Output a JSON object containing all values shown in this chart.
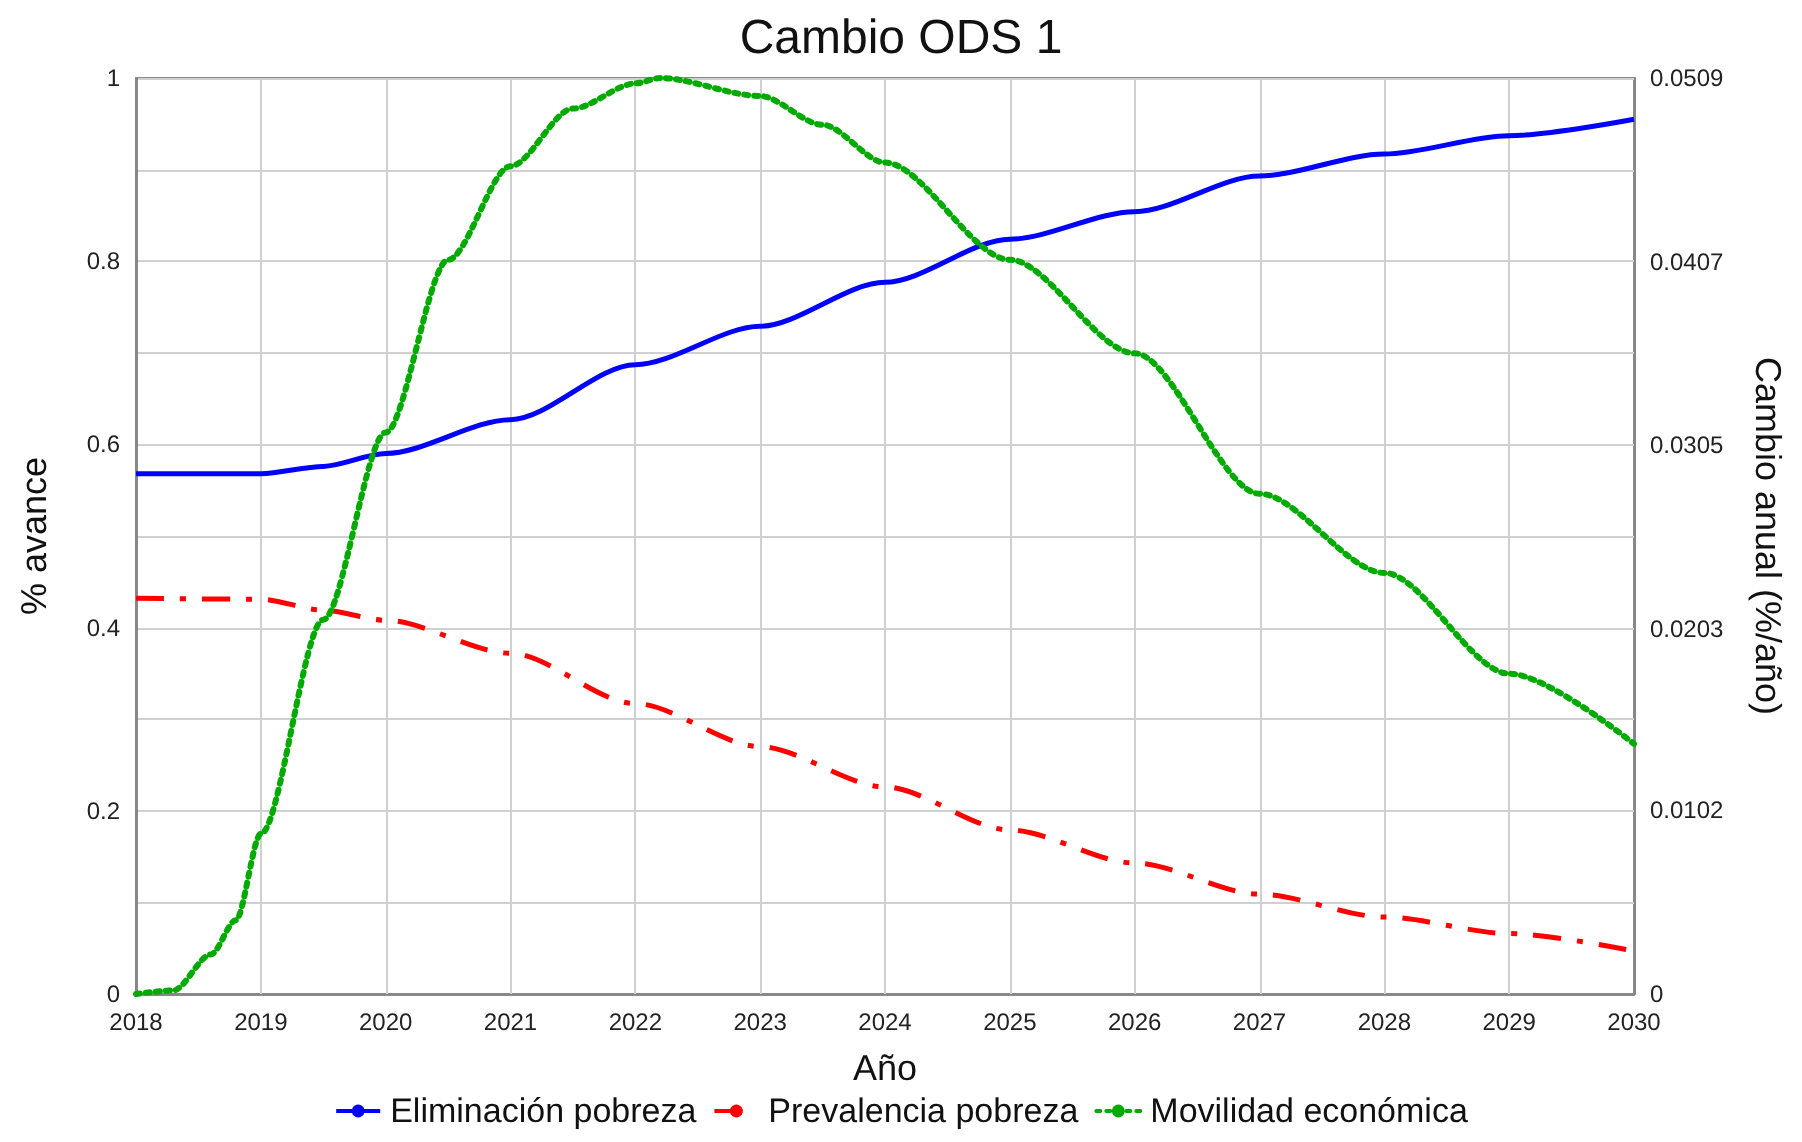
{
  "chart_data": {
    "type": "line",
    "title": "Cambio ODS 1",
    "xlabel": "Año",
    "ylabel": "% avance",
    "y2label": "Cambio anual (%/año)",
    "x": [
      2018,
      2019,
      2019.5,
      2020,
      2021,
      2022,
      2023,
      2024,
      2025,
      2026,
      2027,
      2028,
      2029,
      2030
    ],
    "series": [
      {
        "name": "Eliminación pobreza",
        "color": "#0000ff",
        "line_style": "solid",
        "values": [
          0.568,
          0.568,
          0.576,
          0.59,
          0.627,
          0.687,
          0.729,
          0.777,
          0.824,
          0.854,
          0.893,
          0.917,
          0.937,
          0.955
        ]
      },
      {
        "name": "Prevalencia pobreza",
        "color": "#ff0000",
        "line_style": "dashdot",
        "values": [
          0.432,
          0.431,
          0.419,
          0.408,
          0.372,
          0.317,
          0.27,
          0.226,
          0.179,
          0.143,
          0.109,
          0.084,
          0.066,
          0.047
        ]
      },
      {
        "name": "Movilidad económica",
        "color": "#00aa00",
        "line_style": "dotted",
        "axis": "y2",
        "x": [
          2018,
          2018.3,
          2018.6,
          2018.8,
          2019,
          2019.5,
          2020,
          2020.5,
          2021,
          2021.5,
          2022,
          2022.2,
          2023,
          2023.5,
          2024,
          2025,
          2026,
          2027,
          2028,
          2029,
          2030
        ],
        "values": [
          0,
          0.0002,
          0.0022,
          0.0041,
          0.0089,
          0.0208,
          0.0312,
          0.0408,
          0.046,
          0.0492,
          0.0506,
          0.0509,
          0.0499,
          0.0483,
          0.0462,
          0.0408,
          0.0356,
          0.0278,
          0.0234,
          0.0178,
          0.0139
        ]
      }
    ],
    "xlim": [
      2018,
      2030
    ],
    "xticks": [
      2018,
      2019,
      2020,
      2021,
      2022,
      2023,
      2024,
      2025,
      2026,
      2027,
      2028,
      2029,
      2030
    ],
    "ylim": [
      0,
      1
    ],
    "yticks": [
      0,
      {
        "value": 0.1,
        "label": null
      },
      0.2,
      {
        "value": 0.3,
        "label": null
      },
      0.4,
      {
        "value": 0.5,
        "label": null
      },
      0.6,
      {
        "value": 0.7,
        "label": null
      },
      0.8,
      {
        "value": 0.9,
        "label": null
      },
      1
    ],
    "y2lim": [
      0,
      0.0509
    ],
    "y2ticks": [
      0,
      0.0102,
      0.0203,
      0.0305,
      0.0407,
      0.0509
    ],
    "grid": true,
    "legend": "bottom",
    "marker": "none"
  }
}
